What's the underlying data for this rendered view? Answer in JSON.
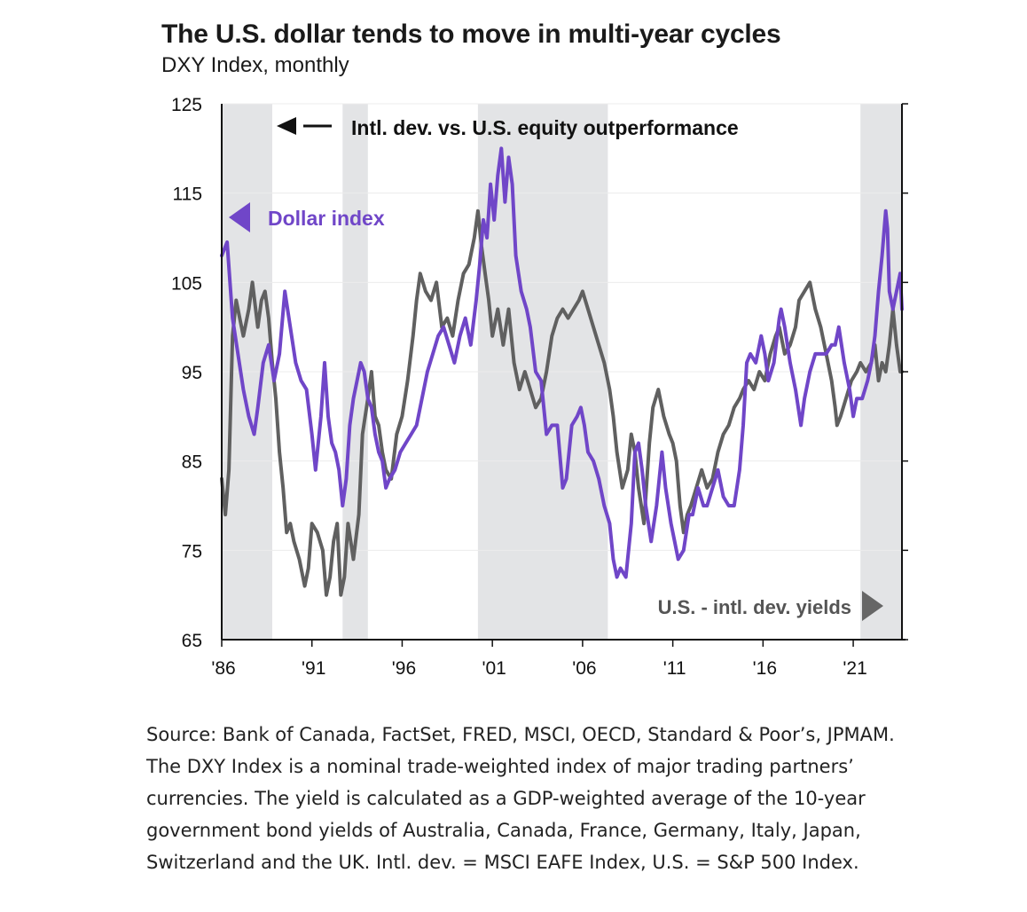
{
  "chart_data": {
    "type": "line",
    "title": "The U.S. dollar tends to move in multi-year cycles",
    "subtitle": "DXY Index, monthly",
    "x_tick_labels": [
      "'86",
      "'91",
      "'96",
      "'01",
      "'06",
      "'11",
      "'16",
      "'21"
    ],
    "x_tick_years": [
      1986,
      1991,
      1996,
      2001,
      2006,
      2011,
      2016,
      2021
    ],
    "xlim": [
      1986,
      2023.7
    ],
    "y_ticks": [
      125,
      115,
      105,
      95,
      85,
      75,
      65
    ],
    "ylim": [
      65,
      125
    ],
    "shaded_periods": [
      [
        1986,
        1988.8
      ],
      [
        1992.7,
        1994.1
      ],
      [
        2000.2,
        2007.4
      ],
      [
        2021.4,
        2023.7
      ]
    ],
    "annotation_top": "Intl. dev. vs. U.S. equity outperformance",
    "series": [
      {
        "name": "Dollar index",
        "color": "#7046c8",
        "points": [
          [
            1986.0,
            108
          ],
          [
            1986.3,
            109.5
          ],
          [
            1986.6,
            101
          ],
          [
            1986.9,
            97
          ],
          [
            1987.2,
            93
          ],
          [
            1987.5,
            90
          ],
          [
            1987.8,
            88
          ],
          [
            1988.0,
            91
          ],
          [
            1988.3,
            96
          ],
          [
            1988.6,
            98
          ],
          [
            1988.9,
            94
          ],
          [
            1989.2,
            97
          ],
          [
            1989.5,
            104
          ],
          [
            1989.8,
            100
          ],
          [
            1990.1,
            96
          ],
          [
            1990.4,
            94
          ],
          [
            1990.7,
            93
          ],
          [
            1991.0,
            88
          ],
          [
            1991.2,
            84
          ],
          [
            1991.5,
            90
          ],
          [
            1991.7,
            96
          ],
          [
            1991.9,
            90
          ],
          [
            1992.1,
            87
          ],
          [
            1992.3,
            86
          ],
          [
            1992.5,
            84
          ],
          [
            1992.7,
            80
          ],
          [
            1992.9,
            83
          ],
          [
            1993.1,
            89
          ],
          [
            1993.3,
            92
          ],
          [
            1993.5,
            94
          ],
          [
            1993.7,
            96
          ],
          [
            1993.9,
            95
          ],
          [
            1994.1,
            92
          ],
          [
            1994.3,
            91
          ],
          [
            1994.5,
            88
          ],
          [
            1994.7,
            86
          ],
          [
            1994.9,
            85
          ],
          [
            1995.1,
            82
          ],
          [
            1995.3,
            83
          ],
          [
            1995.6,
            84
          ],
          [
            1995.9,
            86
          ],
          [
            1996.2,
            87
          ],
          [
            1996.5,
            88
          ],
          [
            1996.8,
            89
          ],
          [
            1997.1,
            92
          ],
          [
            1997.4,
            95
          ],
          [
            1997.7,
            97
          ],
          [
            1998.0,
            99
          ],
          [
            1998.3,
            100
          ],
          [
            1998.6,
            98
          ],
          [
            1998.9,
            96
          ],
          [
            1999.2,
            99
          ],
          [
            1999.5,
            101
          ],
          [
            1999.8,
            98
          ],
          [
            2000.1,
            103
          ],
          [
            2000.3,
            107
          ],
          [
            2000.5,
            112
          ],
          [
            2000.7,
            110
          ],
          [
            2000.9,
            116
          ],
          [
            2001.1,
            112
          ],
          [
            2001.3,
            117
          ],
          [
            2001.5,
            120
          ],
          [
            2001.7,
            114
          ],
          [
            2001.9,
            119
          ],
          [
            2002.1,
            116
          ],
          [
            2002.3,
            108
          ],
          [
            2002.6,
            104
          ],
          [
            2002.9,
            102
          ],
          [
            2003.1,
            100
          ],
          [
            2003.4,
            95
          ],
          [
            2003.7,
            94
          ],
          [
            2004.0,
            88
          ],
          [
            2004.3,
            89
          ],
          [
            2004.6,
            89
          ],
          [
            2004.9,
            82
          ],
          [
            2005.1,
            83
          ],
          [
            2005.4,
            89
          ],
          [
            2005.7,
            90
          ],
          [
            2005.9,
            91
          ],
          [
            2006.1,
            89
          ],
          [
            2006.3,
            86
          ],
          [
            2006.6,
            85
          ],
          [
            2006.9,
            83
          ],
          [
            2007.2,
            80
          ],
          [
            2007.5,
            78
          ],
          [
            2007.7,
            74
          ],
          [
            2007.9,
            72
          ],
          [
            2008.1,
            73
          ],
          [
            2008.4,
            72
          ],
          [
            2008.7,
            78
          ],
          [
            2008.9,
            86
          ],
          [
            2009.1,
            87
          ],
          [
            2009.3,
            84
          ],
          [
            2009.5,
            80
          ],
          [
            2009.8,
            76
          ],
          [
            2010.1,
            80
          ],
          [
            2010.4,
            86
          ],
          [
            2010.6,
            82
          ],
          [
            2010.9,
            78
          ],
          [
            2011.1,
            76
          ],
          [
            2011.3,
            74
          ],
          [
            2011.6,
            75
          ],
          [
            2011.9,
            79
          ],
          [
            2012.1,
            79
          ],
          [
            2012.4,
            82
          ],
          [
            2012.7,
            80
          ],
          [
            2012.9,
            80
          ],
          [
            2013.2,
            82
          ],
          [
            2013.5,
            84
          ],
          [
            2013.8,
            81
          ],
          [
            2014.1,
            80
          ],
          [
            2014.4,
            80
          ],
          [
            2014.7,
            84
          ],
          [
            2014.9,
            89
          ],
          [
            2015.1,
            96
          ],
          [
            2015.3,
            97
          ],
          [
            2015.6,
            96
          ],
          [
            2015.9,
            99
          ],
          [
            2016.1,
            97
          ],
          [
            2016.3,
            94
          ],
          [
            2016.6,
            96
          ],
          [
            2016.9,
            101
          ],
          [
            2017.0,
            102
          ],
          [
            2017.2,
            100
          ],
          [
            2017.5,
            96
          ],
          [
            2017.8,
            93
          ],
          [
            2018.1,
            89
          ],
          [
            2018.3,
            92
          ],
          [
            2018.6,
            95
          ],
          [
            2018.9,
            97
          ],
          [
            2019.2,
            97
          ],
          [
            2019.5,
            97
          ],
          [
            2019.8,
            98
          ],
          [
            2020.0,
            98
          ],
          [
            2020.2,
            100
          ],
          [
            2020.5,
            96
          ],
          [
            2020.8,
            93
          ],
          [
            2021.0,
            90
          ],
          [
            2021.2,
            92
          ],
          [
            2021.5,
            92
          ],
          [
            2021.8,
            94
          ],
          [
            2022.0,
            96
          ],
          [
            2022.2,
            99
          ],
          [
            2022.4,
            104
          ],
          [
            2022.6,
            108
          ],
          [
            2022.8,
            113
          ],
          [
            2022.9,
            111
          ],
          [
            2023.0,
            104
          ],
          [
            2023.2,
            102
          ],
          [
            2023.4,
            104
          ],
          [
            2023.6,
            106
          ],
          [
            2023.7,
            102
          ]
        ]
      },
      {
        "name": "U.S. - intl. dev. yields",
        "color": "#606060",
        "points": [
          [
            1986.0,
            83
          ],
          [
            1986.2,
            79
          ],
          [
            1986.4,
            84
          ],
          [
            1986.6,
            99
          ],
          [
            1986.8,
            103
          ],
          [
            1987.0,
            101
          ],
          [
            1987.2,
            99
          ],
          [
            1987.5,
            102
          ],
          [
            1987.7,
            105
          ],
          [
            1988.0,
            100
          ],
          [
            1988.2,
            103
          ],
          [
            1988.4,
            104
          ],
          [
            1988.6,
            101
          ],
          [
            1988.8,
            96
          ],
          [
            1989.0,
            92
          ],
          [
            1989.2,
            86
          ],
          [
            1989.4,
            82
          ],
          [
            1989.6,
            77
          ],
          [
            1989.8,
            78
          ],
          [
            1990.0,
            76
          ],
          [
            1990.3,
            74
          ],
          [
            1990.6,
            71
          ],
          [
            1990.8,
            73
          ],
          [
            1991.0,
            78
          ],
          [
            1991.3,
            77
          ],
          [
            1991.6,
            75
          ],
          [
            1991.8,
            70
          ],
          [
            1992.0,
            72
          ],
          [
            1992.2,
            76
          ],
          [
            1992.4,
            78
          ],
          [
            1992.6,
            70
          ],
          [
            1992.8,
            72
          ],
          [
            1993.0,
            78
          ],
          [
            1993.3,
            74
          ],
          [
            1993.6,
            79
          ],
          [
            1993.8,
            88
          ],
          [
            1994.1,
            92
          ],
          [
            1994.3,
            95
          ],
          [
            1994.5,
            90
          ],
          [
            1994.7,
            89
          ],
          [
            1994.9,
            86
          ],
          [
            1995.1,
            84
          ],
          [
            1995.4,
            83
          ],
          [
            1995.7,
            88
          ],
          [
            1996.0,
            90
          ],
          [
            1996.3,
            94
          ],
          [
            1996.6,
            99
          ],
          [
            1996.8,
            103
          ],
          [
            1997.0,
            106
          ],
          [
            1997.3,
            104
          ],
          [
            1997.6,
            103
          ],
          [
            1997.9,
            105
          ],
          [
            1998.2,
            100
          ],
          [
            1998.5,
            101
          ],
          [
            1998.8,
            99
          ],
          [
            1999.1,
            103
          ],
          [
            1999.4,
            106
          ],
          [
            1999.7,
            107
          ],
          [
            2000.0,
            110
          ],
          [
            2000.2,
            113
          ],
          [
            2000.4,
            109
          ],
          [
            2000.6,
            106
          ],
          [
            2000.8,
            103
          ],
          [
            2001.0,
            99
          ],
          [
            2001.3,
            102
          ],
          [
            2001.6,
            98
          ],
          [
            2001.9,
            102
          ],
          [
            2002.2,
            96
          ],
          [
            2002.5,
            93
          ],
          [
            2002.8,
            95
          ],
          [
            2003.1,
            93
          ],
          [
            2003.4,
            91
          ],
          [
            2003.7,
            92
          ],
          [
            2004.0,
            95
          ],
          [
            2004.3,
            99
          ],
          [
            2004.6,
            101
          ],
          [
            2004.9,
            102
          ],
          [
            2005.2,
            101
          ],
          [
            2005.5,
            102
          ],
          [
            2005.8,
            103
          ],
          [
            2006.0,
            104
          ],
          [
            2006.3,
            102
          ],
          [
            2006.6,
            100
          ],
          [
            2006.9,
            98
          ],
          [
            2007.2,
            96
          ],
          [
            2007.5,
            93
          ],
          [
            2007.7,
            90
          ],
          [
            2007.9,
            86
          ],
          [
            2008.2,
            82
          ],
          [
            2008.5,
            84
          ],
          [
            2008.7,
            88
          ],
          [
            2008.9,
            86
          ],
          [
            2009.1,
            82
          ],
          [
            2009.4,
            78
          ],
          [
            2009.7,
            87
          ],
          [
            2009.9,
            91
          ],
          [
            2010.2,
            93
          ],
          [
            2010.5,
            90
          ],
          [
            2010.8,
            88
          ],
          [
            2011.0,
            87
          ],
          [
            2011.2,
            85
          ],
          [
            2011.4,
            80
          ],
          [
            2011.6,
            77
          ],
          [
            2011.8,
            79
          ],
          [
            2012.0,
            80
          ],
          [
            2012.3,
            82
          ],
          [
            2012.6,
            84
          ],
          [
            2012.9,
            82
          ],
          [
            2013.2,
            83
          ],
          [
            2013.5,
            86
          ],
          [
            2013.8,
            88
          ],
          [
            2014.1,
            89
          ],
          [
            2014.4,
            91
          ],
          [
            2014.7,
            92
          ],
          [
            2014.9,
            93
          ],
          [
            2015.2,
            94
          ],
          [
            2015.5,
            93
          ],
          [
            2015.8,
            95
          ],
          [
            2016.1,
            94
          ],
          [
            2016.4,
            97
          ],
          [
            2016.7,
            99
          ],
          [
            2016.9,
            100
          ],
          [
            2017.2,
            97
          ],
          [
            2017.5,
            98
          ],
          [
            2017.8,
            100
          ],
          [
            2018.0,
            103
          ],
          [
            2018.3,
            104
          ],
          [
            2018.6,
            105
          ],
          [
            2018.9,
            102
          ],
          [
            2019.2,
            100
          ],
          [
            2019.5,
            97
          ],
          [
            2019.8,
            94
          ],
          [
            2020.0,
            91
          ],
          [
            2020.1,
            89
          ],
          [
            2020.3,
            90
          ],
          [
            2020.6,
            92
          ],
          [
            2020.9,
            94
          ],
          [
            2021.2,
            95
          ],
          [
            2021.4,
            96
          ],
          [
            2021.7,
            95
          ],
          [
            2022.0,
            96
          ],
          [
            2022.2,
            98
          ],
          [
            2022.4,
            94
          ],
          [
            2022.6,
            96
          ],
          [
            2022.8,
            95
          ],
          [
            2023.0,
            98
          ],
          [
            2023.2,
            102
          ],
          [
            2023.4,
            98
          ],
          [
            2023.6,
            95
          ],
          [
            2023.7,
            95
          ]
        ]
      }
    ]
  },
  "source_lines": [
    "Source: Bank of Canada, FactSet, FRED, MSCI, OECD, Standard & Poor’s, JPMAM.",
    "The DXY Index is a nominal trade-weighted index of major trading partners’",
    "currencies. The yield is calculated as a GDP-weighted average of the 10-year",
    "government bond yields of Australia, Canada, France, Germany, Italy, Japan,",
    "Switzerland and the UK. Intl. dev. = MSCI EAFE Index, U.S. = S&P 500 Index."
  ]
}
